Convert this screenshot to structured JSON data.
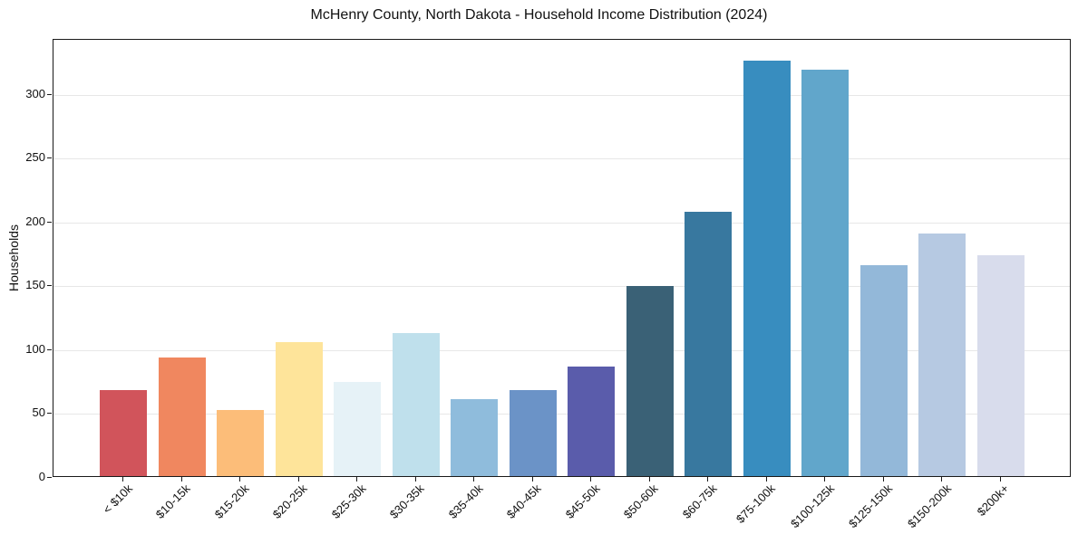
{
  "chart_data": {
    "type": "bar",
    "title": "McHenry County, North Dakota - Household Income Distribution (2024)",
    "xlabel": "",
    "ylabel": "Households",
    "categories": [
      "< $10k",
      "$10-15k",
      "$15-20k",
      "$20-25k",
      "$25-30k",
      "$30-35k",
      "$35-40k",
      "$40-45k",
      "$45-50k",
      "$50-60k",
      "$60-75k",
      "$75-100k",
      "$100-125k",
      "$125-150k",
      "$150-200k",
      "$200k+"
    ],
    "values": [
      67,
      93,
      52,
      105,
      74,
      112,
      60,
      67,
      86,
      149,
      207,
      325,
      318,
      165,
      190,
      173
    ],
    "bar_colors": [
      "#d1545b",
      "#f0875f",
      "#fcbd79",
      "#fee49a",
      "#e6f2f7",
      "#bfe0ec",
      "#8fbcdc",
      "#6b93c7",
      "#5a5cab",
      "#3a6176",
      "#38789f",
      "#388dbf",
      "#61a6cb",
      "#93b8d9",
      "#b6c9e2",
      "#d8dcec"
    ],
    "yticks": [
      0,
      50,
      100,
      150,
      200,
      250,
      300
    ],
    "ylim": [
      0,
      343
    ],
    "grid": "horizontal",
    "gridline_color": "#e7e7e7",
    "legend": "none",
    "background": "#ffffff",
    "x_tick_rotation": 45
  }
}
